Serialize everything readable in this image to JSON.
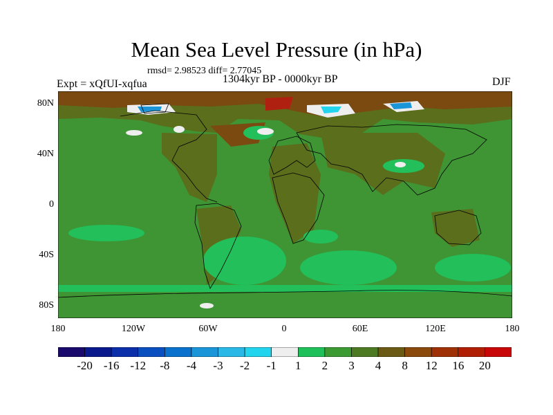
{
  "chart_data": {
    "type": "map",
    "title": "Mean Sea Level Pressure (in hPa)",
    "stats": "rmsd= 2.98523 diff= 2.77045",
    "subtitle": "1304kyr BP - 0000kyr BP",
    "experiment": "Expt = xQfUI-xqfua",
    "season": "DJF",
    "lat_ticks": [
      "80N",
      "40N",
      "0",
      "40S",
      "80S"
    ],
    "lon_ticks": [
      "180",
      "120W",
      "60W",
      "0",
      "60E",
      "120E",
      "180"
    ],
    "colorbar": {
      "labels": [
        "-20",
        "-16",
        "-12",
        "-8",
        "-4",
        "-3",
        "-2",
        "-1",
        "1",
        "2",
        "3",
        "4",
        "8",
        "12",
        "16",
        "20"
      ],
      "colors": [
        "#1a0a6b",
        "#0a1a8c",
        "#0b2fa8",
        "#0a4fc0",
        "#0a72cc",
        "#1a96d8",
        "#2ab8e6",
        "#22d4ee",
        "#eeeeee",
        "#1fc05a",
        "#3c9a33",
        "#4c7a22",
        "#6b5a14",
        "#8a4a0c",
        "#9e3206",
        "#b01e04",
        "#c80808"
      ]
    }
  }
}
